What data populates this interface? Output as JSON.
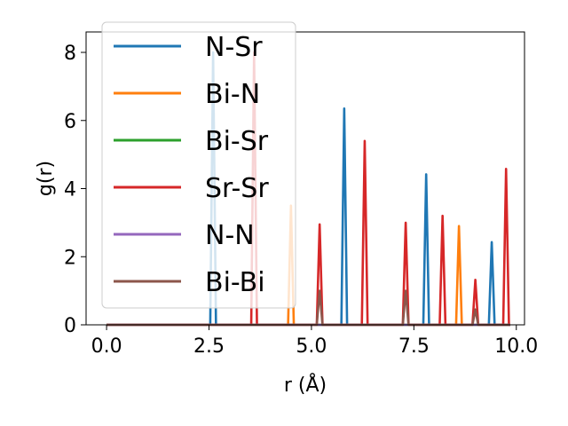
{
  "chart_data": {
    "type": "line",
    "title": "",
    "xlabel": "r (Å)",
    "ylabel": "g(r)",
    "xlim": [
      -0.5,
      10.2
    ],
    "ylim": [
      0,
      8.6
    ],
    "xticks": [
      0.0,
      2.5,
      5.0,
      7.5,
      10.0
    ],
    "xtick_labels": [
      "0.0",
      "2.5",
      "5.0",
      "7.5",
      "10.0"
    ],
    "yticks": [
      0,
      2,
      4,
      6,
      8
    ],
    "ytick_labels": [
      "0",
      "2",
      "4",
      "6",
      "8"
    ],
    "legend_position": "top-left",
    "grid": false,
    "series": [
      {
        "name": "N-Sr",
        "color": "#1f77b4",
        "peaks": [
          [
            2.6,
            8.0
          ],
          [
            5.8,
            6.35
          ],
          [
            7.8,
            4.42
          ],
          [
            9.4,
            2.43
          ]
        ]
      },
      {
        "name": "Bi-N",
        "color": "#ff7f0e",
        "peaks": [
          [
            4.5,
            3.5
          ],
          [
            8.6,
            2.9
          ]
        ]
      },
      {
        "name": "Bi-Sr",
        "color": "#2ca02c",
        "peaks": []
      },
      {
        "name": "Sr-Sr",
        "color": "#d62728",
        "peaks": [
          [
            3.6,
            8.0
          ],
          [
            5.2,
            2.95
          ],
          [
            6.3,
            5.4
          ],
          [
            7.3,
            3.0
          ],
          [
            8.2,
            3.2
          ],
          [
            9.0,
            1.32
          ],
          [
            9.75,
            4.58
          ]
        ]
      },
      {
        "name": "N-N",
        "color": "#9467bd",
        "peaks": []
      },
      {
        "name": "Bi-Bi",
        "color": "#8c564b",
        "peaks": [
          [
            5.2,
            1.0
          ],
          [
            7.3,
            1.0
          ],
          [
            9.0,
            0.45
          ]
        ]
      }
    ]
  }
}
